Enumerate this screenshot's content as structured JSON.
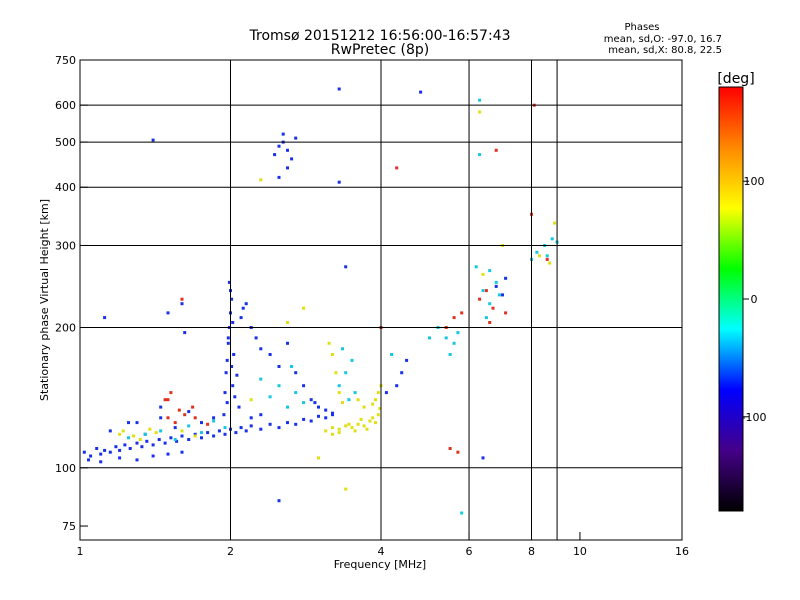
{
  "chart_data": {
    "type": "scatter",
    "title": "Tromsø 20151212 16:56:00-16:57:43",
    "subtitle": "RwPretec (8p)",
    "xlabel": "Frequency [MHz]",
    "ylabel": "Stationary phase Virtual Height [km]",
    "x_scale": "log",
    "y_scale": "log",
    "xlim": [
      1,
      16
    ],
    "ylim": [
      70,
      750
    ],
    "x_ticks": [
      1,
      2,
      4,
      6,
      8,
      10,
      16
    ],
    "y_ticks": [
      75,
      100,
      200,
      300,
      400,
      500,
      600,
      750
    ],
    "x_gridlines": [
      2,
      4,
      6,
      8,
      9
    ],
    "y_gridlines": [
      100,
      200,
      300,
      400,
      500,
      600
    ],
    "grid": true,
    "legend": {
      "title": "Phases",
      "line1": "mean, sd,O: -97.0, 16.7",
      "line2": "mean, sd,X:  80.8, 22.5"
    },
    "colorbar": {
      "label": "[deg]",
      "range": [
        -180,
        180
      ],
      "ticks": [
        100,
        0,
        -100
      ],
      "colors": [
        "#ff0000",
        "#ff8800",
        "#ffff00",
        "#00ff00",
        "#00ffff",
        "#0000ff",
        "#440088",
        "#000000"
      ]
    },
    "series": [
      {
        "points": [
          [
            1.02,
            108
          ],
          [
            1.05,
            106
          ],
          [
            1.08,
            110
          ],
          [
            1.1,
            107
          ],
          [
            1.12,
            109
          ],
          [
            1.15,
            108
          ],
          [
            1.18,
            111
          ],
          [
            1.2,
            109
          ],
          [
            1.23,
            112
          ],
          [
            1.26,
            110
          ],
          [
            1.3,
            113
          ],
          [
            1.33,
            111
          ],
          [
            1.36,
            114
          ],
          [
            1.4,
            112
          ],
          [
            1.44,
            115
          ],
          [
            1.48,
            113
          ],
          [
            1.52,
            116
          ],
          [
            1.56,
            114
          ],
          [
            1.6,
            117
          ],
          [
            1.65,
            115
          ],
          [
            1.7,
            118
          ],
          [
            1.75,
            116
          ],
          [
            1.8,
            119
          ],
          [
            1.85,
            117
          ],
          [
            1.9,
            120
          ],
          [
            1.95,
            118
          ],
          [
            2.0,
            121
          ],
          [
            2.05,
            119
          ],
          [
            2.1,
            122
          ],
          [
            2.15,
            120
          ],
          [
            2.2,
            123
          ],
          [
            2.3,
            121
          ],
          [
            2.4,
            124
          ],
          [
            2.5,
            122
          ],
          [
            2.6,
            125
          ],
          [
            2.7,
            124
          ],
          [
            2.8,
            127
          ],
          [
            2.9,
            126
          ],
          [
            3.0,
            129
          ],
          [
            3.1,
            128
          ],
          [
            3.2,
            131
          ],
          [
            1.04,
            104
          ],
          [
            1.1,
            103
          ],
          [
            1.2,
            105
          ],
          [
            1.3,
            104
          ],
          [
            1.4,
            106
          ],
          [
            1.5,
            107
          ],
          [
            1.6,
            108
          ],
          [
            1.15,
            120
          ],
          [
            1.25,
            125
          ],
          [
            1.35,
            118
          ],
          [
            1.45,
            128
          ],
          [
            1.55,
            122
          ],
          [
            1.65,
            132
          ],
          [
            1.75,
            125
          ],
          [
            1.85,
            128
          ],
          [
            1.97,
            170
          ],
          [
            1.98,
            185
          ],
          [
            1.99,
            200
          ],
          [
            2.0,
            215
          ],
          [
            2.01,
            230
          ],
          [
            1.96,
            160
          ],
          [
            2.02,
            150
          ],
          [
            1.95,
            145
          ],
          [
            2.03,
            175
          ],
          [
            1.98,
            190
          ],
          [
            2.0,
            240
          ],
          [
            1.99,
            250
          ],
          [
            2.02,
            205
          ],
          [
            1.97,
            138
          ],
          [
            2.01,
            165
          ],
          [
            2.04,
            142
          ],
          [
            2.06,
            158
          ],
          [
            1.94,
            130
          ],
          [
            2.08,
            135
          ],
          [
            2.1,
            210
          ],
          [
            2.12,
            220
          ],
          [
            2.15,
            225
          ],
          [
            2.2,
            200
          ],
          [
            2.25,
            190
          ],
          [
            2.3,
            180
          ],
          [
            2.45,
            470
          ],
          [
            2.5,
            490
          ],
          [
            2.55,
            500
          ],
          [
            2.6,
            480
          ],
          [
            2.65,
            460
          ],
          [
            2.7,
            510
          ],
          [
            2.55,
            520
          ],
          [
            2.6,
            440
          ],
          [
            2.5,
            420
          ],
          [
            2.4,
            175
          ],
          [
            2.5,
            165
          ],
          [
            2.6,
            185
          ],
          [
            2.7,
            160
          ],
          [
            2.8,
            150
          ],
          [
            2.9,
            140
          ],
          [
            3.0,
            135
          ],
          [
            3.3,
            650
          ],
          [
            3.3,
            410
          ],
          [
            3.4,
            270
          ],
          [
            1.4,
            505
          ],
          [
            1.12,
            210
          ],
          [
            1.5,
            215
          ],
          [
            1.6,
            225
          ],
          [
            1.62,
            195
          ],
          [
            2.5,
            85
          ],
          [
            3.2,
            130
          ],
          [
            3.1,
            133
          ],
          [
            2.95,
            138
          ],
          [
            2.2,
            128
          ],
          [
            2.3,
            130
          ],
          [
            1.3,
            125
          ],
          [
            1.45,
            135
          ],
          [
            4.3,
            150
          ],
          [
            4.4,
            160
          ],
          [
            4.5,
            170
          ],
          [
            4.1,
            145
          ],
          [
            4.8,
            640
          ],
          [
            6.4,
            105
          ],
          [
            7.0,
            235
          ],
          [
            6.8,
            245
          ],
          [
            7.1,
            255
          ]
        ]
      },
      {
        "points": [
          [
            1.35,
            118
          ],
          [
            1.45,
            120
          ],
          [
            1.55,
            115
          ],
          [
            1.65,
            123
          ],
          [
            1.75,
            119
          ],
          [
            1.85,
            126
          ],
          [
            1.95,
            122
          ],
          [
            1.25,
            116
          ],
          [
            2.6,
            135
          ],
          [
            2.7,
            145
          ],
          [
            2.8,
            138
          ],
          [
            2.5,
            150
          ],
          [
            2.4,
            142
          ],
          [
            2.3,
            155
          ],
          [
            2.65,
            165
          ],
          [
            3.3,
            150
          ],
          [
            3.4,
            160
          ],
          [
            3.5,
            170
          ],
          [
            3.45,
            140
          ],
          [
            3.35,
            180
          ],
          [
            3.55,
            145
          ],
          [
            4.2,
            175
          ],
          [
            5.0,
            190
          ],
          [
            5.2,
            200
          ],
          [
            6.3,
            615
          ],
          [
            6.3,
            470
          ],
          [
            6.2,
            270
          ],
          [
            6.4,
            240
          ],
          [
            6.6,
            225
          ],
          [
            6.8,
            250
          ],
          [
            6.5,
            210
          ],
          [
            6.9,
            235
          ],
          [
            6.6,
            265
          ],
          [
            8.0,
            280
          ],
          [
            8.2,
            290
          ],
          [
            8.5,
            300
          ],
          [
            8.8,
            310
          ],
          [
            9.0,
            305
          ],
          [
            8.6,
            285
          ],
          [
            5.8,
            80
          ],
          [
            5.6,
            185
          ],
          [
            5.5,
            175
          ],
          [
            5.7,
            195
          ],
          [
            5.4,
            190
          ]
        ]
      },
      {
        "points": [
          [
            1.2,
            118
          ],
          [
            1.22,
            120
          ],
          [
            1.28,
            117
          ],
          [
            1.38,
            121
          ],
          [
            1.32,
            115
          ],
          [
            1.42,
            119
          ],
          [
            1.6,
            120
          ],
          [
            1.7,
            117
          ],
          [
            3.1,
            120
          ],
          [
            3.2,
            122
          ],
          [
            3.3,
            121
          ],
          [
            3.4,
            123
          ],
          [
            3.5,
            122
          ],
          [
            3.6,
            124
          ],
          [
            3.7,
            123
          ],
          [
            3.8,
            126
          ],
          [
            3.9,
            125
          ],
          [
            3.95,
            130
          ],
          [
            3.2,
            118
          ],
          [
            3.3,
            119
          ],
          [
            3.45,
            124
          ],
          [
            3.55,
            120
          ],
          [
            3.65,
            127
          ],
          [
            3.85,
            128
          ],
          [
            3.75,
            121
          ],
          [
            3.98,
            134
          ],
          [
            3.2,
            175
          ],
          [
            3.25,
            160
          ],
          [
            3.3,
            145
          ],
          [
            3.15,
            185
          ],
          [
            3.35,
            138
          ],
          [
            3.9,
            140
          ],
          [
            3.95,
            145
          ],
          [
            3.85,
            137
          ],
          [
            3.6,
            140
          ],
          [
            3.7,
            135
          ],
          [
            4.0,
            150
          ],
          [
            2.3,
            415
          ],
          [
            3.4,
            90
          ],
          [
            3.0,
            105
          ],
          [
            2.6,
            205
          ],
          [
            2.8,
            220
          ],
          [
            2.2,
            140
          ],
          [
            6.3,
            580
          ],
          [
            6.4,
            260
          ],
          [
            7.0,
            300
          ],
          [
            8.3,
            285
          ],
          [
            8.9,
            335
          ],
          [
            8.7,
            275
          ]
        ]
      },
      {
        "points": [
          [
            1.5,
            128
          ],
          [
            1.55,
            125
          ],
          [
            1.62,
            130
          ],
          [
            1.7,
            128
          ],
          [
            1.8,
            124
          ],
          [
            1.58,
            133
          ],
          [
            1.68,
            135
          ],
          [
            1.48,
            140
          ],
          [
            1.52,
            145
          ],
          [
            1.6,
            230
          ],
          [
            1.5,
            140
          ],
          [
            4.3,
            440
          ],
          [
            5.5,
            110
          ],
          [
            5.7,
            108
          ],
          [
            4.0,
            200
          ],
          [
            5.6,
            210
          ],
          [
            5.4,
            200
          ],
          [
            5.8,
            215
          ],
          [
            6.3,
            230
          ],
          [
            6.5,
            240
          ],
          [
            6.6,
            205
          ],
          [
            6.7,
            220
          ],
          [
            7.1,
            215
          ],
          [
            8.1,
            600
          ],
          [
            8.6,
            280
          ],
          [
            6.8,
            480
          ],
          [
            8.0,
            350
          ]
        ]
      }
    ]
  }
}
